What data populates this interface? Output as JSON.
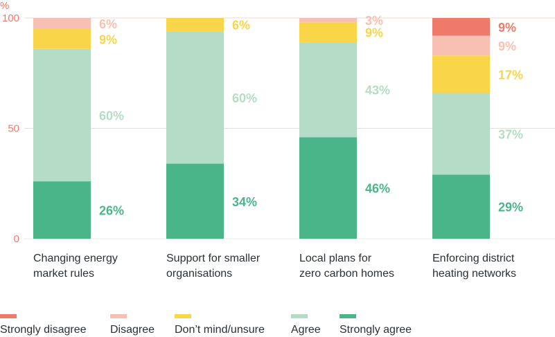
{
  "chart_data": {
    "type": "bar",
    "stacked": true,
    "ylabel": "%",
    "ylim": [
      0,
      100
    ],
    "yticks": [
      "0",
      "50",
      "100"
    ],
    "categories": [
      [
        "Changing energy",
        "market rules"
      ],
      [
        "Support for smaller",
        "organisations"
      ],
      [
        "Local plans for",
        "zero carbon homes"
      ],
      [
        "Enforcing district",
        "heating networks"
      ]
    ],
    "series": [
      {
        "name": "Strongly agree",
        "color": "#4bb58a",
        "values": [
          26,
          34,
          46,
          29
        ]
      },
      {
        "name": "Agree",
        "color": "#b5dcc6",
        "values": [
          60,
          60,
          43,
          37
        ]
      },
      {
        "name": "Don’t mind/unsure",
        "color": "#f9d54a",
        "values": [
          9,
          6,
          9,
          17
        ]
      },
      {
        "name": "Disagree",
        "color": "#f7c0b2",
        "values": [
          6,
          0,
          3,
          9
        ]
      },
      {
        "name": "Strongly disagree",
        "color": "#f07a6a",
        "values": [
          0,
          0,
          0,
          9
        ]
      }
    ],
    "legend_order": [
      "Strongly disagree",
      "Disagree",
      "Don’t mind/unsure",
      "Agree",
      "Strongly agree"
    ],
    "legend_position": "bottom",
    "grid": true
  }
}
